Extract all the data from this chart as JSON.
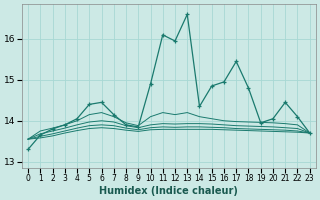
{
  "xlabel": "Humidex (Indice chaleur)",
  "bg_color": "#cce9e5",
  "line_color": "#1a7a6e",
  "grid_color": "#a8d8d4",
  "xlim": [
    -0.5,
    23.5
  ],
  "ylim": [
    12.85,
    16.85
  ],
  "yticks": [
    13,
    14,
    15,
    16
  ],
  "xticks": [
    0,
    1,
    2,
    3,
    4,
    5,
    6,
    7,
    8,
    9,
    10,
    11,
    12,
    13,
    14,
    15,
    16,
    17,
    18,
    19,
    20,
    21,
    22,
    23
  ],
  "lines": [
    {
      "x": [
        0,
        1,
        2,
        3,
        4,
        5,
        6,
        7,
        8,
        9,
        10,
        11,
        12,
        13,
        14,
        15,
        16,
        17,
        18,
        19,
        20,
        21,
        22,
        23
      ],
      "y": [
        13.3,
        13.65,
        13.8,
        13.9,
        14.05,
        14.4,
        14.45,
        14.15,
        13.9,
        13.85,
        14.9,
        16.1,
        15.95,
        16.6,
        14.35,
        14.85,
        14.95,
        15.45,
        14.8,
        13.95,
        14.05,
        14.45,
        14.1,
        13.7
      ],
      "marker": true
    },
    {
      "x": [
        0,
        1,
        2,
        3,
        4,
        5,
        6,
        7,
        8,
        9,
        10,
        11,
        12,
        13,
        14,
        15,
        16,
        17,
        18,
        19,
        20,
        21,
        22,
        23
      ],
      "y": [
        13.55,
        13.75,
        13.82,
        13.9,
        14.0,
        14.15,
        14.2,
        14.1,
        13.95,
        13.88,
        14.1,
        14.2,
        14.15,
        14.2,
        14.1,
        14.05,
        14.0,
        13.98,
        13.97,
        13.96,
        13.95,
        13.93,
        13.9,
        13.7
      ],
      "marker": false
    },
    {
      "x": [
        0,
        1,
        2,
        3,
        4,
        5,
        6,
        7,
        8,
        9,
        10,
        11,
        12,
        13,
        14,
        15,
        16,
        17,
        18,
        19,
        20,
        21,
        22,
        23
      ],
      "y": [
        13.55,
        13.68,
        13.75,
        13.82,
        13.9,
        13.97,
        14.0,
        13.97,
        13.88,
        13.83,
        13.9,
        13.93,
        13.92,
        13.93,
        13.93,
        13.92,
        13.9,
        13.88,
        13.87,
        13.86,
        13.85,
        13.83,
        13.81,
        13.7
      ],
      "marker": false
    },
    {
      "x": [
        0,
        1,
        2,
        3,
        4,
        5,
        6,
        7,
        8,
        9,
        10,
        11,
        12,
        13,
        14,
        15,
        16,
        17,
        18,
        19,
        20,
        21,
        22,
        23
      ],
      "y": [
        13.55,
        13.62,
        13.68,
        13.75,
        13.82,
        13.88,
        13.9,
        13.88,
        13.82,
        13.78,
        13.83,
        13.85,
        13.84,
        13.85,
        13.85,
        13.84,
        13.83,
        13.81,
        13.8,
        13.79,
        13.78,
        13.77,
        13.75,
        13.7
      ],
      "marker": false
    },
    {
      "x": [
        0,
        1,
        2,
        3,
        4,
        5,
        6,
        7,
        8,
        9,
        10,
        11,
        12,
        13,
        14,
        15,
        16,
        17,
        18,
        19,
        20,
        21,
        22,
        23
      ],
      "y": [
        13.55,
        13.58,
        13.63,
        13.7,
        13.76,
        13.81,
        13.83,
        13.81,
        13.77,
        13.74,
        13.78,
        13.79,
        13.79,
        13.79,
        13.79,
        13.79,
        13.78,
        13.77,
        13.76,
        13.75,
        13.74,
        13.73,
        13.72,
        13.7
      ],
      "marker": false
    }
  ]
}
